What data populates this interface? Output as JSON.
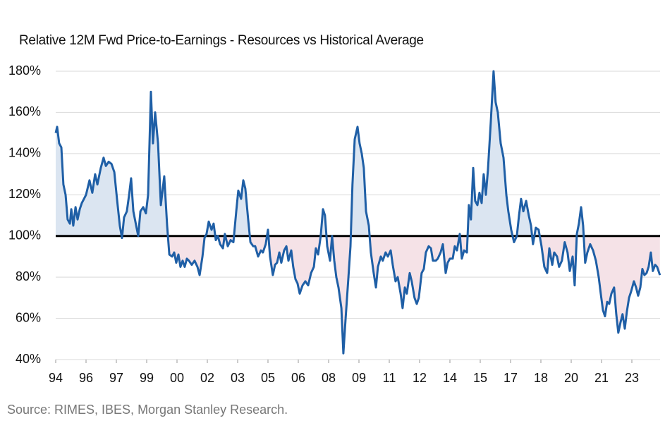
{
  "chart_data": {
    "type": "line",
    "title": "Relative 12M Fwd Price-to-Earnings - Resources vs Historical Average",
    "source": "Source: RIMES, IBES, Morgan Stanley Research.",
    "color": "#1f5fa6",
    "above_fill": "#dbe5f1",
    "below_fill": "#f5e2e7",
    "reference_line": 100,
    "reference_color": "#000000",
    "grid": true,
    "xlim": [
      1994,
      2024
    ],
    "xticks": [
      {
        "value": 1994,
        "label": "94"
      },
      {
        "value": 1995.5,
        "label": "96"
      },
      {
        "value": 1997,
        "label": "97"
      },
      {
        "value": 1998.5,
        "label": "99"
      },
      {
        "value": 2000,
        "label": "00"
      },
      {
        "value": 2001.5,
        "label": "02"
      },
      {
        "value": 2003,
        "label": "03"
      },
      {
        "value": 2004.5,
        "label": "05"
      },
      {
        "value": 2006,
        "label": "06"
      },
      {
        "value": 2007.5,
        "label": "08"
      },
      {
        "value": 2009,
        "label": "09"
      },
      {
        "value": 2010.5,
        "label": "11"
      },
      {
        "value": 2012,
        "label": "12"
      },
      {
        "value": 2013.5,
        "label": "14"
      },
      {
        "value": 2015,
        "label": "15"
      },
      {
        "value": 2016.5,
        "label": "17"
      },
      {
        "value": 2018,
        "label": "18"
      },
      {
        "value": 2019.5,
        "label": "20"
      },
      {
        "value": 2021,
        "label": "21"
      },
      {
        "value": 2022.5,
        "label": "23"
      }
    ],
    "ylim": [
      40,
      180
    ],
    "yticks": [
      {
        "value": 40,
        "label": "40%"
      },
      {
        "value": 60,
        "label": "60%"
      },
      {
        "value": 80,
        "label": "80%"
      },
      {
        "value": 100,
        "label": "100%"
      },
      {
        "value": 120,
        "label": "120%"
      },
      {
        "value": 140,
        "label": "140%"
      },
      {
        "value": 160,
        "label": "160%"
      },
      {
        "value": 180,
        "label": "180%"
      }
    ],
    "x": [
      1994.0,
      1994.07,
      1994.17,
      1994.28,
      1994.38,
      1994.49,
      1994.59,
      1994.7,
      1994.77,
      1994.87,
      1994.98,
      1995.08,
      1995.19,
      1995.29,
      1995.4,
      1995.5,
      1995.67,
      1995.81,
      1995.95,
      1996.06,
      1996.23,
      1996.37,
      1996.48,
      1996.62,
      1996.76,
      1996.9,
      1997.03,
      1997.17,
      1997.28,
      1997.38,
      1997.52,
      1997.63,
      1997.73,
      1997.84,
      1997.98,
      1998.08,
      1998.19,
      1998.33,
      1998.46,
      1998.57,
      1998.71,
      1998.81,
      1998.92,
      1999.06,
      1999.2,
      1999.37,
      1999.51,
      1999.62,
      1999.76,
      1999.86,
      1999.96,
      2000.07,
      2000.17,
      2000.28,
      2000.38,
      2000.49,
      2000.59,
      2000.73,
      2000.87,
      2001.01,
      2001.12,
      2001.26,
      2001.36,
      2001.46,
      2001.57,
      2001.71,
      2001.81,
      2001.92,
      2002.02,
      2002.13,
      2002.27,
      2002.37,
      2002.51,
      2002.65,
      2002.79,
      2002.93,
      2003.03,
      2003.17,
      2003.28,
      2003.38,
      2003.52,
      2003.63,
      2003.77,
      2003.87,
      2004.01,
      2004.15,
      2004.25,
      2004.39,
      2004.5,
      2004.6,
      2004.74,
      2004.85,
      2004.95,
      2005.06,
      2005.16,
      2005.3,
      2005.41,
      2005.51,
      2005.65,
      2005.75,
      2005.86,
      2005.96,
      2006.07,
      2006.21,
      2006.35,
      2006.49,
      2006.63,
      2006.77,
      2006.87,
      2006.98,
      2007.11,
      2007.22,
      2007.32,
      2007.43,
      2007.57,
      2007.67,
      2007.78,
      2007.88,
      2007.99,
      2008.13,
      2008.23,
      2008.34,
      2008.48,
      2008.58,
      2008.68,
      2008.79,
      2008.93,
      2009.03,
      2009.14,
      2009.24,
      2009.35,
      2009.49,
      2009.59,
      2009.73,
      2009.84,
      2009.94,
      2010.08,
      2010.18,
      2010.32,
      2010.43,
      2010.57,
      2010.67,
      2010.81,
      2010.92,
      2011.06,
      2011.16,
      2011.27,
      2011.37,
      2011.51,
      2011.61,
      2011.75,
      2011.86,
      2011.96,
      2012.1,
      2012.21,
      2012.31,
      2012.45,
      2012.56,
      2012.66,
      2012.8,
      2012.9,
      2013.04,
      2013.15,
      2013.29,
      2013.39,
      2013.5,
      2013.64,
      2013.74,
      2013.85,
      2013.99,
      2014.09,
      2014.2,
      2014.34,
      2014.44,
      2014.54,
      2014.65,
      2014.75,
      2014.86,
      2014.96,
      2015.07,
      2015.17,
      2015.28,
      2015.38,
      2015.52,
      2015.66,
      2015.76,
      2015.87,
      2016.01,
      2016.15,
      2016.29,
      2016.39,
      2016.53,
      2016.67,
      2016.81,
      2016.92,
      2017.02,
      2017.13,
      2017.27,
      2017.4,
      2017.51,
      2017.61,
      2017.75,
      2017.89,
      2018.03,
      2018.17,
      2018.31,
      2018.42,
      2018.56,
      2018.66,
      2018.8,
      2018.9,
      2019.04,
      2019.18,
      2019.32,
      2019.43,
      2019.57,
      2019.67,
      2019.78,
      2019.88,
      2019.99,
      2020.09,
      2020.19,
      2020.3,
      2020.44,
      2020.58,
      2020.72,
      2020.86,
      2020.96,
      2021.07,
      2021.17,
      2021.28,
      2021.38,
      2021.49,
      2021.62,
      2021.73,
      2021.83,
      2021.94,
      2022.04,
      2022.15,
      2022.25,
      2022.36,
      2022.46,
      2022.6,
      2022.71,
      2022.81,
      2022.92,
      2023.02,
      2023.12,
      2023.23,
      2023.33,
      2023.44,
      2023.54,
      2023.65,
      2023.75,
      2023.89
    ],
    "values": [
      150,
      153,
      145,
      143,
      125,
      120,
      108,
      106,
      113,
      105,
      114,
      108,
      113,
      116,
      118,
      120,
      127,
      121,
      130,
      125,
      133,
      138,
      134,
      136,
      135,
      131,
      118,
      105,
      99,
      109,
      112,
      120,
      128,
      112,
      105,
      100,
      112,
      114,
      111,
      120,
      170,
      145,
      160,
      145,
      115,
      129,
      105,
      91,
      90,
      92,
      87,
      91,
      85,
      88,
      85,
      89,
      88,
      86,
      88,
      85,
      81,
      90,
      99,
      101,
      107,
      103,
      106,
      98,
      100,
      96,
      94,
      101,
      95,
      98,
      97,
      112,
      122,
      118,
      127,
      123,
      108,
      97,
      95,
      95,
      90,
      93,
      92,
      96,
      103,
      90,
      81,
      86,
      87,
      92,
      87,
      93,
      95,
      88,
      93,
      85,
      79,
      77,
      72,
      76,
      78,
      76,
      82,
      85,
      94,
      91,
      100,
      113,
      110,
      95,
      88,
      100,
      88,
      80,
      75,
      65,
      43,
      60,
      80,
      95,
      125,
      147,
      153,
      145,
      140,
      133,
      112,
      105,
      92,
      82,
      75,
      85,
      90,
      88,
      92,
      90,
      93,
      86,
      78,
      80,
      72,
      65,
      75,
      72,
      82,
      78,
      70,
      67,
      70,
      82,
      84,
      92,
      95,
      94,
      88,
      88,
      89,
      92,
      96,
      82,
      87,
      89,
      89,
      95,
      93,
      101,
      89,
      93,
      92,
      115,
      108,
      133,
      117,
      115,
      121,
      116,
      130,
      120,
      132,
      155,
      180,
      165,
      160,
      145,
      138,
      120,
      112,
      103,
      97,
      100,
      110,
      118,
      112,
      117,
      110,
      105,
      96,
      104,
      103,
      95,
      85,
      82,
      94,
      86,
      92,
      90,
      85,
      88,
      97,
      92,
      83,
      90,
      76,
      101,
      106,
      114,
      105,
      87,
      92,
      96,
      93,
      88,
      80,
      72,
      64,
      61,
      68,
      67,
      72,
      75,
      62,
      53,
      58,
      62,
      55,
      63,
      70,
      73,
      78,
      75,
      71,
      75,
      84,
      81,
      82,
      85,
      92,
      83,
      86,
      85,
      81
    ]
  }
}
